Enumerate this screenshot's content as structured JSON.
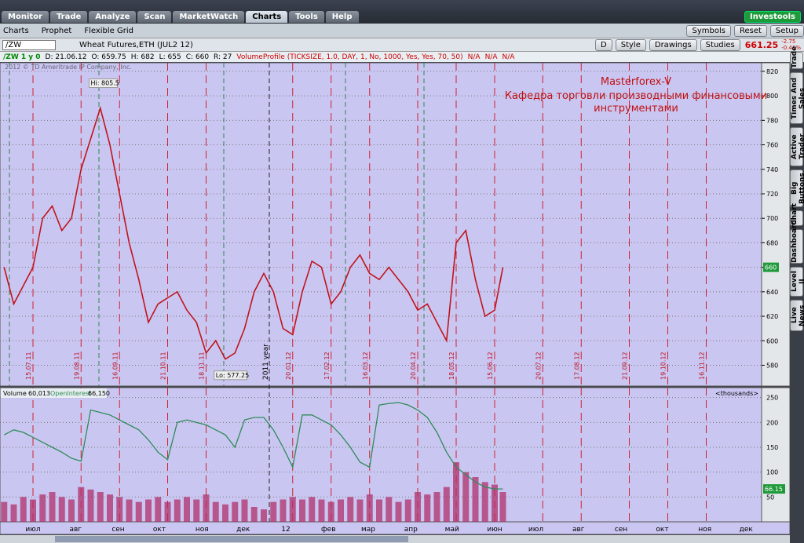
{
  "ui": {
    "tabs": [
      "Monitor",
      "Trade",
      "Analyze",
      "Scan",
      "MarketWatch",
      "Charts",
      "Tools",
      "Help"
    ],
    "brand": "Investools",
    "subtabs": [
      "Charts",
      "Prophet",
      "Flexible Grid"
    ],
    "toolbar": [
      "Symbols",
      "Reset",
      "Setup"
    ],
    "symbol": "/ZW",
    "description": "Wheat Futures,ETH (JUL2 12)",
    "chart_buttons": [
      "D",
      "Style",
      "Drawings",
      "Studies"
    ],
    "last": "661.25",
    "change": "-2.75",
    "change_pct": "-0.41%",
    "info": [
      "/ZW 1 y 0",
      "D: 21.06.12",
      "O: 659.75",
      "H: 682",
      "L: 655",
      "C: 660",
      "R: 27"
    ],
    "study": "VolumeProfile (TICKSIZE, 1.0, DAY, 1, No, 1000, Yes, Yes, 70, 50)",
    "na": [
      "N/A",
      "N/A",
      "N/A"
    ],
    "side_tabs": [
      "Trade",
      "Times And Sales",
      "Active Trader",
      "Big Buttons",
      "Chart",
      "Dashboard",
      "Level II",
      "Live News"
    ],
    "copyright": "2012 © TD Ameritrade IP Company, Inc.",
    "annotation_title": "Masterforex-V",
    "annotation_text": "Кафедра торговли производными финансовыми инструментами",
    "year_label": "2011 year",
    "expiry_dates": [
      "15.07.11",
      "19.08.11",
      "16.09.11",
      "21.10.11",
      "18.11.11",
      "20.01.12",
      "17.02.12",
      "16.03.12",
      "20.04.12",
      "18.05.12",
      "15.06.12",
      "20.07.12",
      "17.08.12",
      "21.09.12",
      "19.10.12",
      "16.11.12"
    ],
    "months": [
      "июл",
      "авг",
      "сен",
      "окт",
      "ноя",
      "дек",
      "12",
      "фев",
      "мар",
      "апр",
      "май",
      "июн",
      "июл",
      "авг",
      "сен",
      "окт",
      "ноя",
      "дек"
    ]
  },
  "chart_data": [
    {
      "type": "line",
      "x": [
        "24.06.11",
        "01.07.11",
        "08.07.11",
        "15.07.11",
        "22.07.11",
        "29.07.11",
        "05.08.11",
        "12.08.11",
        "19.08.11",
        "26.08.11",
        "02.09.11",
        "09.09.11",
        "16.09.11",
        "23.09.11",
        "30.09.11",
        "07.10.11",
        "14.10.11",
        "21.10.11",
        "28.10.11",
        "04.11.11",
        "11.11.11",
        "18.11.11",
        "25.11.11",
        "02.12.11",
        "09.12.11",
        "16.12.11",
        "23.12.11",
        "30.12.11",
        "06.01.12",
        "13.01.12",
        "20.01.12",
        "27.01.12",
        "03.02.12",
        "10.02.12",
        "17.02.12",
        "24.02.12",
        "02.03.12",
        "09.03.12",
        "16.03.12",
        "23.03.12",
        "30.03.12",
        "06.04.12",
        "13.04.12",
        "20.04.12",
        "27.04.12",
        "04.05.12",
        "11.05.12",
        "18.05.12",
        "25.05.12",
        "01.06.12",
        "08.06.12",
        "15.06.12",
        "21.06.12"
      ],
      "series": [
        {
          "name": "/ZW",
          "color": "#c0141c",
          "values": [
            660,
            630,
            645,
            660,
            700,
            710,
            690,
            700,
            740,
            765,
            790,
            760,
            720,
            680,
            650,
            615,
            630,
            635,
            640,
            625,
            615,
            590,
            600,
            585,
            590,
            610,
            640,
            655,
            640,
            610,
            605,
            640,
            665,
            660,
            630,
            640,
            660,
            670,
            655,
            650,
            660,
            650,
            640,
            625,
            630,
            615,
            600,
            680,
            690,
            650,
            620,
            625,
            660
          ]
        }
      ],
      "ylim": [
        563,
        827
      ],
      "yticks": [
        580,
        600,
        620,
        640,
        660,
        680,
        700,
        720,
        740,
        760,
        780,
        800,
        820
      ],
      "last_value": 660,
      "annotations": [
        {
          "label": "Hi: 805.5",
          "value": 805.5,
          "date": "26.08.11"
        },
        {
          "label": "Lo: 577.25",
          "value": 577.25,
          "date": "25.11.11"
        }
      ]
    },
    {
      "type": "bar",
      "x": [
        "24.06.11",
        "01.07.11",
        "08.07.11",
        "15.07.11",
        "22.07.11",
        "29.07.11",
        "05.08.11",
        "12.08.11",
        "19.08.11",
        "26.08.11",
        "02.09.11",
        "09.09.11",
        "16.09.11",
        "23.09.11",
        "30.09.11",
        "07.10.11",
        "14.10.11",
        "21.10.11",
        "28.10.11",
        "04.11.11",
        "11.11.11",
        "18.11.11",
        "25.11.11",
        "02.12.11",
        "09.12.11",
        "16.12.11",
        "23.12.11",
        "30.12.11",
        "06.01.12",
        "13.01.12",
        "20.01.12",
        "27.01.12",
        "03.02.12",
        "10.02.12",
        "17.02.12",
        "24.02.12",
        "02.03.12",
        "09.03.12",
        "16.03.12",
        "23.03.12",
        "30.03.12",
        "06.04.12",
        "13.04.12",
        "20.04.12",
        "27.04.12",
        "04.05.12",
        "11.05.12",
        "18.05.12",
        "25.05.12",
        "01.06.12",
        "08.06.12",
        "15.06.12",
        "21.06.12"
      ],
      "legend_title": "Volume",
      "legend_value": "60,013",
      "oi_title": "OpenInterest",
      "oi_value": "66,150",
      "units": "<thousands>",
      "series": [
        {
          "name": "Volume",
          "color": "#b0306a",
          "values": [
            40,
            35,
            50,
            45,
            55,
            60,
            50,
            45,
            70,
            65,
            60,
            55,
            50,
            45,
            40,
            45,
            50,
            40,
            45,
            50,
            45,
            55,
            40,
            35,
            40,
            45,
            30,
            25,
            40,
            45,
            50,
            45,
            50,
            45,
            40,
            45,
            50,
            45,
            55,
            45,
            50,
            40,
            45,
            60,
            55,
            60,
            70,
            120,
            100,
            90,
            80,
            75,
            60
          ]
        },
        {
          "name": "OpenInterest",
          "color": "#2e8b57",
          "line": true,
          "values": [
            175,
            185,
            180,
            170,
            160,
            150,
            140,
            128,
            122,
            225,
            220,
            215,
            205,
            195,
            185,
            165,
            140,
            125,
            200,
            205,
            200,
            195,
            185,
            175,
            150,
            205,
            210,
            210,
            185,
            150,
            110,
            215,
            215,
            205,
            195,
            175,
            150,
            120,
            110,
            235,
            238,
            240,
            235,
            225,
            210,
            180,
            140,
            110,
            95,
            80,
            70,
            66.15,
            66.15
          ]
        }
      ],
      "ylim": [
        0,
        270
      ],
      "yticks": [
        50,
        100,
        150,
        200,
        250
      ],
      "last_label": "66.15"
    }
  ]
}
